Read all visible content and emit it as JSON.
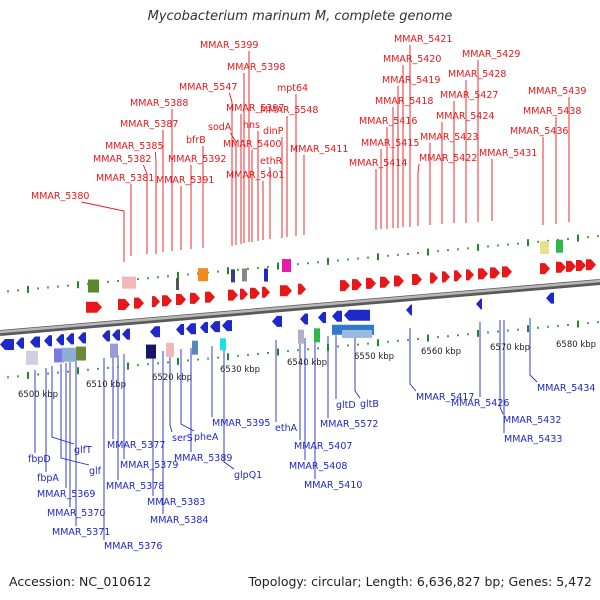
{
  "title": "Mycobacterium marinum M, complete genome",
  "footer": {
    "accession": "Accession: NC_010612",
    "summary": "Topology: circular; Length: 6,636,827 bp; Genes: 5,472"
  },
  "colors": {
    "forward": "#e8171a",
    "reverse": "#1f28c8",
    "backbone": "#8a8a8a",
    "tick": "#1e8a2a"
  },
  "kbp_labels": [
    "6500 kbp",
    "6510 kbp",
    "6520 kbp",
    "6530 kbp",
    "6540 kbp",
    "6550 kbp",
    "6560 kbp",
    "6570 kbp",
    "6580 kbp"
  ],
  "forward_labels": [
    "MMAR_5380",
    "MMAR_5381",
    "MMAR_5382",
    "MMAR_5385",
    "MMAR_5387",
    "MMAR_5388",
    "MMAR_5391",
    "MMAR_5392",
    "bfrB",
    "MMAR_5547",
    "sodA",
    "MMAR_5397",
    "MMAR_5398",
    "MMAR_5399",
    "MMAR_5400",
    "hns",
    "MMAR_5401",
    "ethR",
    "dinP",
    "MMAR_5548",
    "mpt64",
    "MMAR_5411",
    "MMAR_5414",
    "MMAR_5415",
    "MMAR_5416",
    "MMAR_5418",
    "MMAR_5419",
    "MMAR_5420",
    "MMAR_5421",
    "MMAR_5422",
    "MMAR_5423",
    "MMAR_5424",
    "MMAR_5427",
    "MMAR_5428",
    "MMAR_5429",
    "MMAR_5431",
    "MMAR_5436",
    "MMAR_5438",
    "MMAR_5439"
  ],
  "reverse_labels": [
    "fbpD",
    "fbpA",
    "glfT",
    "glf",
    "MMAR_5369",
    "MMAR_5370",
    "MMAR_5371",
    "MMAR_5376",
    "MMAR_5377",
    "MMAR_5378",
    "MMAR_5379",
    "MMAR_5383",
    "MMAR_5384",
    "serS",
    "pheA",
    "MMAR_5389",
    "MMAR_5395",
    "glpQ1",
    "ethA",
    "MMAR_5407",
    "MMAR_5408",
    "MMAR_5410",
    "MMAR_5572",
    "gltD",
    "gltB",
    "MMAR_5417",
    "MMAR_5426",
    "MMAR_5432",
    "MMAR_5433",
    "MMAR_5434"
  ]
}
